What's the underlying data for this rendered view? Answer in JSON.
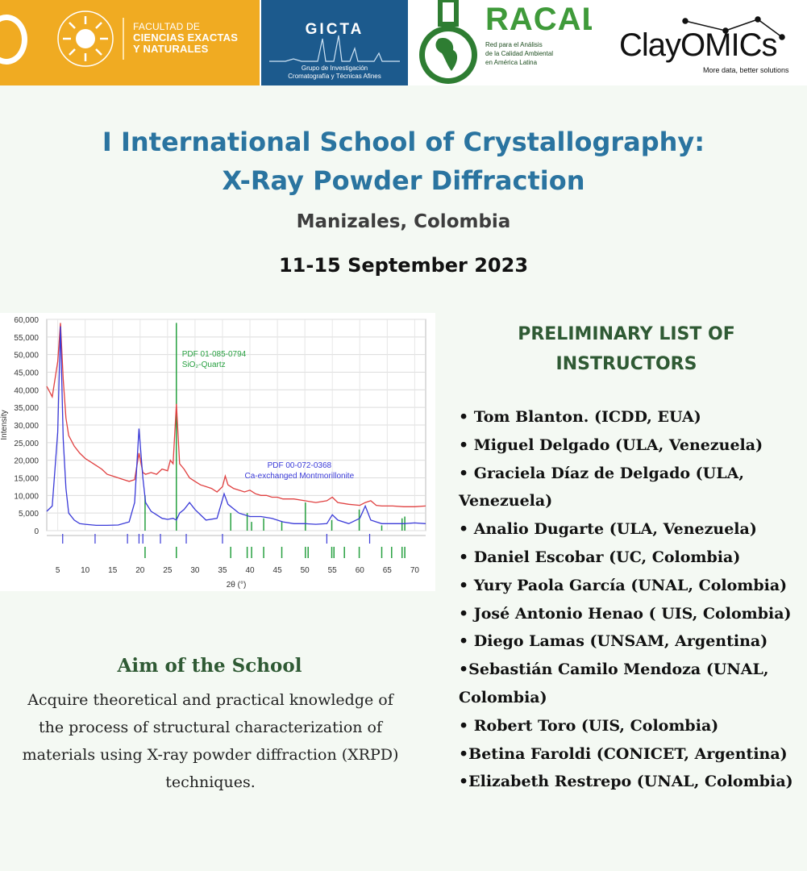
{
  "logos": {
    "udc": {
      "faculty": [
        "FACULTAD DE",
        "CIENCIAS EXACTAS",
        "Y NATURALES"
      ],
      "color": "#f0ab22"
    },
    "gicta": {
      "name": "GICTA",
      "subtitle": [
        "Grupo de Investigación",
        "Cromatografía y Técnicas Afines"
      ],
      "color": "#1c5a8d"
    },
    "racal": {
      "name": "RACAL",
      "subtitle": [
        "Red para el Análisis",
        "de la Calidad Ambiental",
        "en América Latina"
      ],
      "color": "#3f9a3a"
    },
    "clayomics": {
      "name": "ClayOMICs",
      "tagline": "More data, better solutions"
    }
  },
  "event": {
    "title_line1": "I International School of Crystallography:",
    "title_line2": "X-Ray Powder Diffraction",
    "location": "Manizales, Colombia",
    "dates": "11-15 September 2023"
  },
  "chart_data": {
    "type": "line",
    "xlabel": "2θ (°)",
    "ylabel": "Intensity",
    "xlim": [
      3,
      72
    ],
    "ylim": [
      0,
      60000
    ],
    "x_ticks": [
      5,
      10,
      15,
      20,
      25,
      30,
      35,
      40,
      45,
      50,
      55,
      60,
      65,
      70
    ],
    "y_ticks": [
      0,
      5000,
      10000,
      15000,
      20000,
      25000,
      30000,
      35000,
      40000,
      45000,
      50000,
      55000,
      60000
    ],
    "y_tick_labels": [
      "0",
      "5,000",
      "10,000",
      "15,000",
      "20,000",
      "25,000",
      "30,000",
      "35,000",
      "40,000",
      "45,000",
      "50,000",
      "55,000",
      "60,000"
    ],
    "grid": true,
    "series": [
      {
        "color": "#e04040",
        "x": [
          3,
          4,
          5,
          5.5,
          6,
          6.5,
          7,
          8,
          9,
          10,
          11,
          12,
          13,
          14,
          15,
          16,
          17,
          18,
          19,
          19.8,
          20.5,
          21,
          22,
          23,
          24,
          25,
          25.5,
          26,
          26.6,
          27.2,
          28,
          29,
          30,
          31,
          32,
          33,
          34,
          35,
          35.5,
          36,
          37,
          38,
          39,
          40,
          41,
          42,
          43,
          44,
          45,
          46,
          48,
          50,
          52,
          54,
          55,
          56,
          58,
          60,
          61,
          62,
          63,
          64,
          66,
          68,
          70,
          72
        ],
        "y": [
          41000,
          38000,
          48000,
          59000,
          43000,
          32000,
          27000,
          24000,
          22000,
          20500,
          19500,
          18500,
          17500,
          16000,
          15500,
          15000,
          14500,
          14000,
          14500,
          22000,
          16500,
          16000,
          16500,
          16000,
          17500,
          17000,
          20000,
          19000,
          36000,
          19000,
          17500,
          15000,
          14000,
          13000,
          12500,
          12000,
          11000,
          12500,
          15500,
          13000,
          12000,
          11500,
          11000,
          11500,
          10500,
          10000,
          10000,
          9500,
          9500,
          9000,
          9000,
          8500,
          8000,
          8500,
          9500,
          8000,
          7500,
          7200,
          8000,
          8500,
          7200,
          7000,
          7000,
          6800,
          6800,
          7000
        ]
      },
      {
        "color": "#3a3ad8",
        "x": [
          3,
          4,
          5,
          5.5,
          6,
          6.5,
          7,
          8,
          9,
          10,
          12,
          14,
          16,
          18,
          19,
          19.8,
          20.5,
          21,
          22,
          23,
          24,
          25,
          26,
          26.6,
          27.2,
          28,
          29,
          30,
          32,
          34,
          35.3,
          36,
          38,
          40,
          42,
          44,
          46,
          48,
          50,
          52,
          54,
          55,
          56,
          58,
          60,
          61,
          62,
          63,
          64,
          66,
          68,
          70,
          72
        ],
        "y": [
          5500,
          7000,
          28000,
          58000,
          26000,
          12000,
          5000,
          3000,
          2000,
          1800,
          1500,
          1500,
          1600,
          2500,
          8000,
          29000,
          15000,
          8000,
          5500,
          4500,
          3500,
          3200,
          3500,
          3000,
          5000,
          6000,
          8000,
          6000,
          3000,
          3500,
          10500,
          7500,
          5000,
          4000,
          4000,
          3500,
          2500,
          2000,
          2000,
          1800,
          2000,
          4500,
          3000,
          2000,
          3500,
          7000,
          3000,
          2500,
          2000,
          2000,
          2000,
          2200,
          2000
        ]
      }
    ],
    "reference_sets": [
      {
        "label": [
          "PDF 01-085-0794",
          "SiO₂-Quartz"
        ],
        "color": "#27a040",
        "peaks": [
          {
            "x": 20.9,
            "y": 10000
          },
          {
            "x": 26.6,
            "y": 59000
          },
          {
            "x": 36.5,
            "y": 5000
          },
          {
            "x": 39.5,
            "y": 5000
          },
          {
            "x": 40.3,
            "y": 2500
          },
          {
            "x": 42.5,
            "y": 3500
          },
          {
            "x": 45.8,
            "y": 2500
          },
          {
            "x": 50.1,
            "y": 8000
          },
          {
            "x": 54.9,
            "y": 3000
          },
          {
            "x": 59.9,
            "y": 6000
          },
          {
            "x": 64,
            "y": 1500
          },
          {
            "x": 67.7,
            "y": 3500
          },
          {
            "x": 68.2,
            "y": 4000
          }
        ],
        "ticks": [
          20.9,
          26.6,
          36.5,
          39.5,
          40.3,
          42.5,
          45.8,
          50.1,
          50.6,
          54.9,
          55.3,
          57.2,
          59.9,
          64,
          65.8,
          67.7,
          68.2
        ]
      },
      {
        "label": [
          "PDF 00-072-0368",
          "Ca-exchanged Montmorillonite"
        ],
        "color": "#3a3ad8",
        "ticks": [
          5.9,
          11.8,
          17.7,
          19.8,
          20.5,
          23.7,
          28.4,
          35,
          54,
          61.8
        ]
      }
    ]
  },
  "instructors": {
    "heading": [
      "PRELIMINARY LIST OF",
      "INSTRUCTORS"
    ],
    "lines": [
      "• Tom Blanton. (ICDD, EUA)",
      "• Miguel Delgado (ULA, Venezuela)",
      "• Graciela Díaz de Delgado (ULA,",
      "Venezuela)",
      "• Analio Dugarte (ULA, Venezuela)",
      "• Daniel Escobar (UC, Colombia)",
      "• Yury Paola García (UNAL, Colombia)",
      "• José Antonio Henao ( UIS, Colombia)",
      "• Diego Lamas (UNSAM, Argentina)",
      "•Sebastián Camilo Mendoza (UNAL,",
      "Colombia)",
      "• Robert Toro (UIS, Colombia)",
      "•Betina Faroldi (CONICET, Argentina)",
      "•Elizabeth Restrepo (UNAL, Colombia)"
    ]
  },
  "aim": {
    "title": "Aim of the School",
    "text": [
      "Acquire theoretical and practical knowledge of",
      "the process of structural characterization of",
      "materials using X-ray powder diffraction (XRPD)",
      "techniques."
    ]
  }
}
